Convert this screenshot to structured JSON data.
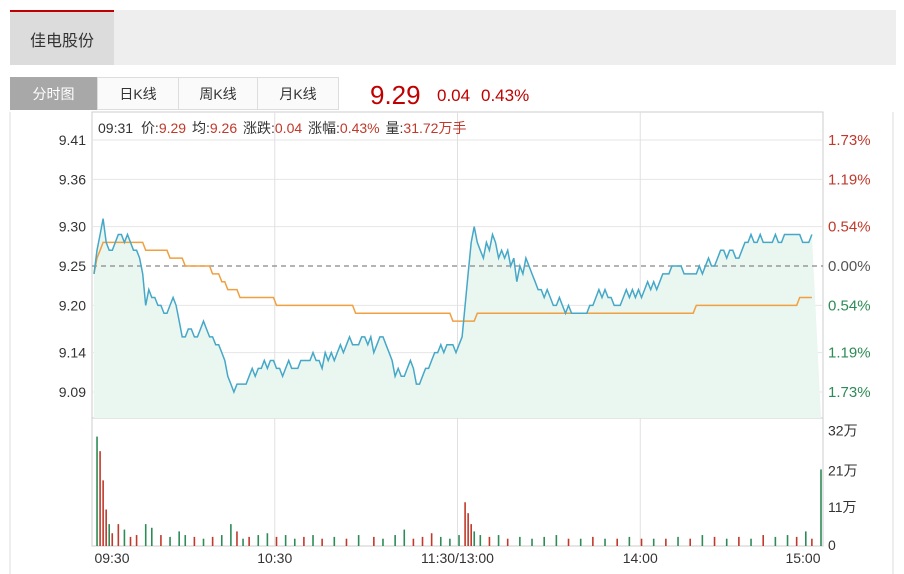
{
  "stock": {
    "name": "佳电股份"
  },
  "tabs": [
    {
      "label": "分时图",
      "active": true
    },
    {
      "label": "日K线",
      "active": false
    },
    {
      "label": "周K线",
      "active": false
    },
    {
      "label": "月K线",
      "active": false
    }
  ],
  "quote": {
    "price": "9.29",
    "change": "0.04",
    "change_pct": "0.43%"
  },
  "info": {
    "time": "09:31",
    "price_label": "价:",
    "price": "9.29",
    "avg_label": "均:",
    "avg": "9.26",
    "change_label": "涨跌:",
    "change": "0.04",
    "pct_label": "涨幅:",
    "pct": "0.43%",
    "vol_label": "量:",
    "vol": "31.72万手"
  },
  "colors": {
    "up": "#c0392b",
    "down": "#2e8b57",
    "price_line": "#45a8c8",
    "avg_line": "#f0a040",
    "area_fill": "#eaf6f0"
  },
  "chart_data": {
    "type": "line",
    "y_ticks": [
      "9.41",
      "9.36",
      "9.30",
      "9.25",
      "9.20",
      "9.14",
      "9.09"
    ],
    "y_right_ticks": [
      "1.73%",
      "1.19%",
      "0.54%",
      "0.00%",
      "0.54%",
      "1.19%",
      "1.73%"
    ],
    "ylim": [
      9.09,
      9.41
    ],
    "prev_close": 9.25,
    "x_ticks": [
      "09:30",
      "10:30",
      "11:30/13:00",
      "14:00",
      "15:00"
    ],
    "n_minutes": 240,
    "series": [
      {
        "values": [
          9.24,
          9.27,
          9.29,
          9.31,
          9.28,
          9.27,
          9.27,
          9.28,
          9.29,
          9.29,
          9.28,
          9.29,
          9.28,
          9.27,
          9.27,
          9.26,
          9.24,
          9.2,
          9.22,
          9.21,
          9.21,
          9.2,
          9.2,
          9.19,
          9.19,
          9.2,
          9.21,
          9.2,
          9.18,
          9.16,
          9.16,
          9.17,
          9.17,
          9.16,
          9.16,
          9.17,
          9.18,
          9.17,
          9.16,
          9.16,
          9.15,
          9.15,
          9.14,
          9.13,
          9.11,
          9.1,
          9.09,
          9.1,
          9.1,
          9.1,
          9.1,
          9.11,
          9.12,
          9.11,
          9.12,
          9.12,
          9.13,
          9.12,
          9.13,
          9.13,
          9.12,
          9.12,
          9.11,
          9.12,
          9.13,
          9.12,
          9.12,
          9.12,
          9.13,
          9.13,
          9.13,
          9.13,
          9.14,
          9.13,
          9.13,
          9.12,
          9.14,
          9.13,
          9.14,
          9.13,
          9.14,
          9.15,
          9.14,
          9.15,
          9.16,
          9.15,
          9.15,
          9.15,
          9.16,
          9.16,
          9.15,
          9.16,
          9.14,
          9.15,
          9.16,
          9.16,
          9.15,
          9.14,
          9.13,
          9.11,
          9.12,
          9.11,
          9.11,
          9.12,
          9.13,
          9.12,
          9.1,
          9.1,
          9.11,
          9.12,
          9.12,
          9.13,
          9.14,
          9.14,
          9.15,
          9.14,
          9.15,
          9.15,
          9.15,
          9.14,
          9.15,
          9.16,
          9.2,
          9.24,
          9.28,
          9.3,
          9.28,
          9.27,
          9.26,
          9.28,
          9.27,
          9.29,
          9.28,
          9.26,
          9.27,
          9.26,
          9.27,
          9.25,
          9.26,
          9.23,
          9.25,
          9.24,
          9.26,
          9.25,
          9.24,
          9.23,
          9.22,
          9.22,
          9.21,
          9.22,
          9.21,
          9.2,
          9.2,
          9.21,
          9.2,
          9.19,
          9.2,
          9.19,
          9.19,
          9.19,
          9.19,
          9.19,
          9.19,
          9.2,
          9.2,
          9.21,
          9.22,
          9.21,
          9.22,
          9.21,
          9.21,
          9.2,
          9.2,
          9.2,
          9.21,
          9.22,
          9.21,
          9.22,
          9.21,
          9.22,
          9.21,
          9.22,
          9.23,
          9.22,
          9.23,
          9.22,
          9.23,
          9.24,
          9.24,
          9.24,
          9.25,
          9.25,
          9.25,
          9.25,
          9.24,
          9.24,
          9.24,
          9.24,
          9.24,
          9.25,
          9.24,
          9.25,
          9.26,
          9.25,
          9.25,
          9.26,
          9.27,
          9.27,
          9.26,
          9.27,
          9.27,
          9.26,
          9.26,
          9.27,
          9.28,
          9.28,
          9.29,
          9.28,
          9.28,
          9.29,
          9.28,
          9.28,
          9.28,
          9.28,
          9.29,
          9.28,
          9.28,
          9.29,
          9.29,
          9.29,
          9.29,
          9.29,
          9.29,
          9.28,
          9.28,
          9.28,
          9.29
        ]
      },
      {
        "values": [
          9.24,
          9.26,
          9.27,
          9.28,
          9.28,
          9.28,
          9.28,
          9.28,
          9.28,
          9.28,
          9.28,
          9.28,
          9.28,
          9.28,
          9.28,
          9.28,
          9.28,
          9.27,
          9.27,
          9.27,
          9.27,
          9.27,
          9.27,
          9.27,
          9.27,
          9.26,
          9.26,
          9.26,
          9.26,
          9.26,
          9.25,
          9.25,
          9.25,
          9.25,
          9.25,
          9.25,
          9.25,
          9.25,
          9.25,
          9.24,
          9.24,
          9.24,
          9.23,
          9.23,
          9.22,
          9.22,
          9.22,
          9.22,
          9.21,
          9.21,
          9.21,
          9.21,
          9.21,
          9.21,
          9.21,
          9.21,
          9.21,
          9.21,
          9.21,
          9.21,
          9.2,
          9.2,
          9.2,
          9.2,
          9.2,
          9.2,
          9.2,
          9.2,
          9.2,
          9.2,
          9.2,
          9.2,
          9.2,
          9.2,
          9.2,
          9.2,
          9.2,
          9.2,
          9.2,
          9.2,
          9.2,
          9.2,
          9.2,
          9.2,
          9.2,
          9.2,
          9.19,
          9.19,
          9.19,
          9.19,
          9.19,
          9.19,
          9.19,
          9.19,
          9.19,
          9.19,
          9.19,
          9.19,
          9.19,
          9.19,
          9.19,
          9.19,
          9.19,
          9.19,
          9.19,
          9.19,
          9.19,
          9.19,
          9.19,
          9.19,
          9.19,
          9.19,
          9.19,
          9.19,
          9.19,
          9.19,
          9.19,
          9.19,
          9.18,
          9.18,
          9.18,
          9.18,
          9.18,
          9.18,
          9.18,
          9.18,
          9.19,
          9.19,
          9.19,
          9.19,
          9.19,
          9.19,
          9.19,
          9.19,
          9.19,
          9.19,
          9.19,
          9.19,
          9.19,
          9.19,
          9.19,
          9.19,
          9.19,
          9.19,
          9.19,
          9.19,
          9.19,
          9.19,
          9.19,
          9.19,
          9.19,
          9.19,
          9.19,
          9.19,
          9.19,
          9.19,
          9.19,
          9.19,
          9.19,
          9.19,
          9.19,
          9.19,
          9.19,
          9.19,
          9.19,
          9.19,
          9.19,
          9.19,
          9.19,
          9.19,
          9.19,
          9.19,
          9.19,
          9.19,
          9.19,
          9.19,
          9.19,
          9.19,
          9.19,
          9.19,
          9.19,
          9.19,
          9.19,
          9.19,
          9.19,
          9.19,
          9.19,
          9.19,
          9.19,
          9.19,
          9.19,
          9.19,
          9.19,
          9.19,
          9.19,
          9.19,
          9.19,
          9.19,
          9.2,
          9.2,
          9.2,
          9.2,
          9.2,
          9.2,
          9.2,
          9.2,
          9.2,
          9.2,
          9.2,
          9.2,
          9.2,
          9.2,
          9.2,
          9.2,
          9.2,
          9.2,
          9.2,
          9.2,
          9.2,
          9.2,
          9.2,
          9.2,
          9.2,
          9.2,
          9.2,
          9.2,
          9.2,
          9.2,
          9.2,
          9.2,
          9.2,
          9.2,
          9.21,
          9.21,
          9.21,
          9.21,
          9.21
        ]
      }
    ],
    "volume": {
      "ylim": [
        0,
        340000
      ],
      "y_ticks": [
        "32万",
        "21万",
        "11万",
        "0"
      ],
      "bars": [
        {
          "i": 1,
          "v": 300000,
          "up": false
        },
        {
          "i": 2,
          "v": 260000,
          "up": true
        },
        {
          "i": 3,
          "v": 180000,
          "up": true
        },
        {
          "i": 4,
          "v": 100000,
          "up": true
        },
        {
          "i": 5,
          "v": 60000,
          "up": false
        },
        {
          "i": 6,
          "v": 35000,
          "up": true
        },
        {
          "i": 8,
          "v": 60000,
          "up": true
        },
        {
          "i": 10,
          "v": 45000,
          "up": false
        },
        {
          "i": 12,
          "v": 25000,
          "up": true
        },
        {
          "i": 14,
          "v": 30000,
          "up": true
        },
        {
          "i": 17,
          "v": 60000,
          "up": false
        },
        {
          "i": 19,
          "v": 50000,
          "up": false
        },
        {
          "i": 22,
          "v": 30000,
          "up": true
        },
        {
          "i": 25,
          "v": 25000,
          "up": false
        },
        {
          "i": 28,
          "v": 40000,
          "up": false
        },
        {
          "i": 30,
          "v": 30000,
          "up": false
        },
        {
          "i": 33,
          "v": 25000,
          "up": true
        },
        {
          "i": 36,
          "v": 20000,
          "up": false
        },
        {
          "i": 39,
          "v": 25000,
          "up": true
        },
        {
          "i": 42,
          "v": 30000,
          "up": false
        },
        {
          "i": 45,
          "v": 60000,
          "up": false
        },
        {
          "i": 47,
          "v": 40000,
          "up": true
        },
        {
          "i": 49,
          "v": 20000,
          "up": false
        },
        {
          "i": 51,
          "v": 25000,
          "up": true
        },
        {
          "i": 54,
          "v": 30000,
          "up": false
        },
        {
          "i": 57,
          "v": 35000,
          "up": false
        },
        {
          "i": 60,
          "v": 25000,
          "up": true
        },
        {
          "i": 63,
          "v": 30000,
          "up": false
        },
        {
          "i": 66,
          "v": 20000,
          "up": false
        },
        {
          "i": 69,
          "v": 25000,
          "up": true
        },
        {
          "i": 72,
          "v": 30000,
          "up": false
        },
        {
          "i": 75,
          "v": 20000,
          "up": true
        },
        {
          "i": 79,
          "v": 25000,
          "up": false
        },
        {
          "i": 83,
          "v": 20000,
          "up": true
        },
        {
          "i": 87,
          "v": 30000,
          "up": false
        },
        {
          "i": 92,
          "v": 25000,
          "up": true
        },
        {
          "i": 95,
          "v": 20000,
          "up": false
        },
        {
          "i": 99,
          "v": 30000,
          "up": false
        },
        {
          "i": 102,
          "v": 45000,
          "up": false
        },
        {
          "i": 105,
          "v": 20000,
          "up": true
        },
        {
          "i": 108,
          "v": 25000,
          "up": true
        },
        {
          "i": 111,
          "v": 35000,
          "up": true
        },
        {
          "i": 114,
          "v": 25000,
          "up": false
        },
        {
          "i": 117,
          "v": 20000,
          "up": false
        },
        {
          "i": 120,
          "v": 30000,
          "up": false
        },
        {
          "i": 122,
          "v": 120000,
          "up": true
        },
        {
          "i": 123,
          "v": 90000,
          "up": true
        },
        {
          "i": 124,
          "v": 60000,
          "up": true
        },
        {
          "i": 125,
          "v": 40000,
          "up": false
        },
        {
          "i": 127,
          "v": 30000,
          "up": false
        },
        {
          "i": 130,
          "v": 25000,
          "up": true
        },
        {
          "i": 133,
          "v": 30000,
          "up": false
        },
        {
          "i": 136,
          "v": 20000,
          "up": true
        },
        {
          "i": 140,
          "v": 25000,
          "up": false
        },
        {
          "i": 144,
          "v": 20000,
          "up": false
        },
        {
          "i": 148,
          "v": 25000,
          "up": false
        },
        {
          "i": 152,
          "v": 30000,
          "up": false
        },
        {
          "i": 156,
          "v": 20000,
          "up": true
        },
        {
          "i": 160,
          "v": 20000,
          "up": false
        },
        {
          "i": 164,
          "v": 25000,
          "up": true
        },
        {
          "i": 168,
          "v": 20000,
          "up": false
        },
        {
          "i": 172,
          "v": 20000,
          "up": true
        },
        {
          "i": 176,
          "v": 25000,
          "up": false
        },
        {
          "i": 180,
          "v": 20000,
          "up": true
        },
        {
          "i": 184,
          "v": 20000,
          "up": false
        },
        {
          "i": 188,
          "v": 20000,
          "up": true
        },
        {
          "i": 192,
          "v": 25000,
          "up": false
        },
        {
          "i": 196,
          "v": 20000,
          "up": true
        },
        {
          "i": 200,
          "v": 30000,
          "up": false
        },
        {
          "i": 204,
          "v": 25000,
          "up": true
        },
        {
          "i": 208,
          "v": 20000,
          "up": false
        },
        {
          "i": 212,
          "v": 25000,
          "up": true
        },
        {
          "i": 216,
          "v": 20000,
          "up": false
        },
        {
          "i": 220,
          "v": 30000,
          "up": true
        },
        {
          "i": 224,
          "v": 25000,
          "up": false
        },
        {
          "i": 228,
          "v": 30000,
          "up": false
        },
        {
          "i": 231,
          "v": 25000,
          "up": true
        },
        {
          "i": 234,
          "v": 40000,
          "up": false
        },
        {
          "i": 236,
          "v": 20000,
          "up": true
        },
        {
          "i": 239,
          "v": 210000,
          "up": false
        }
      ]
    }
  }
}
